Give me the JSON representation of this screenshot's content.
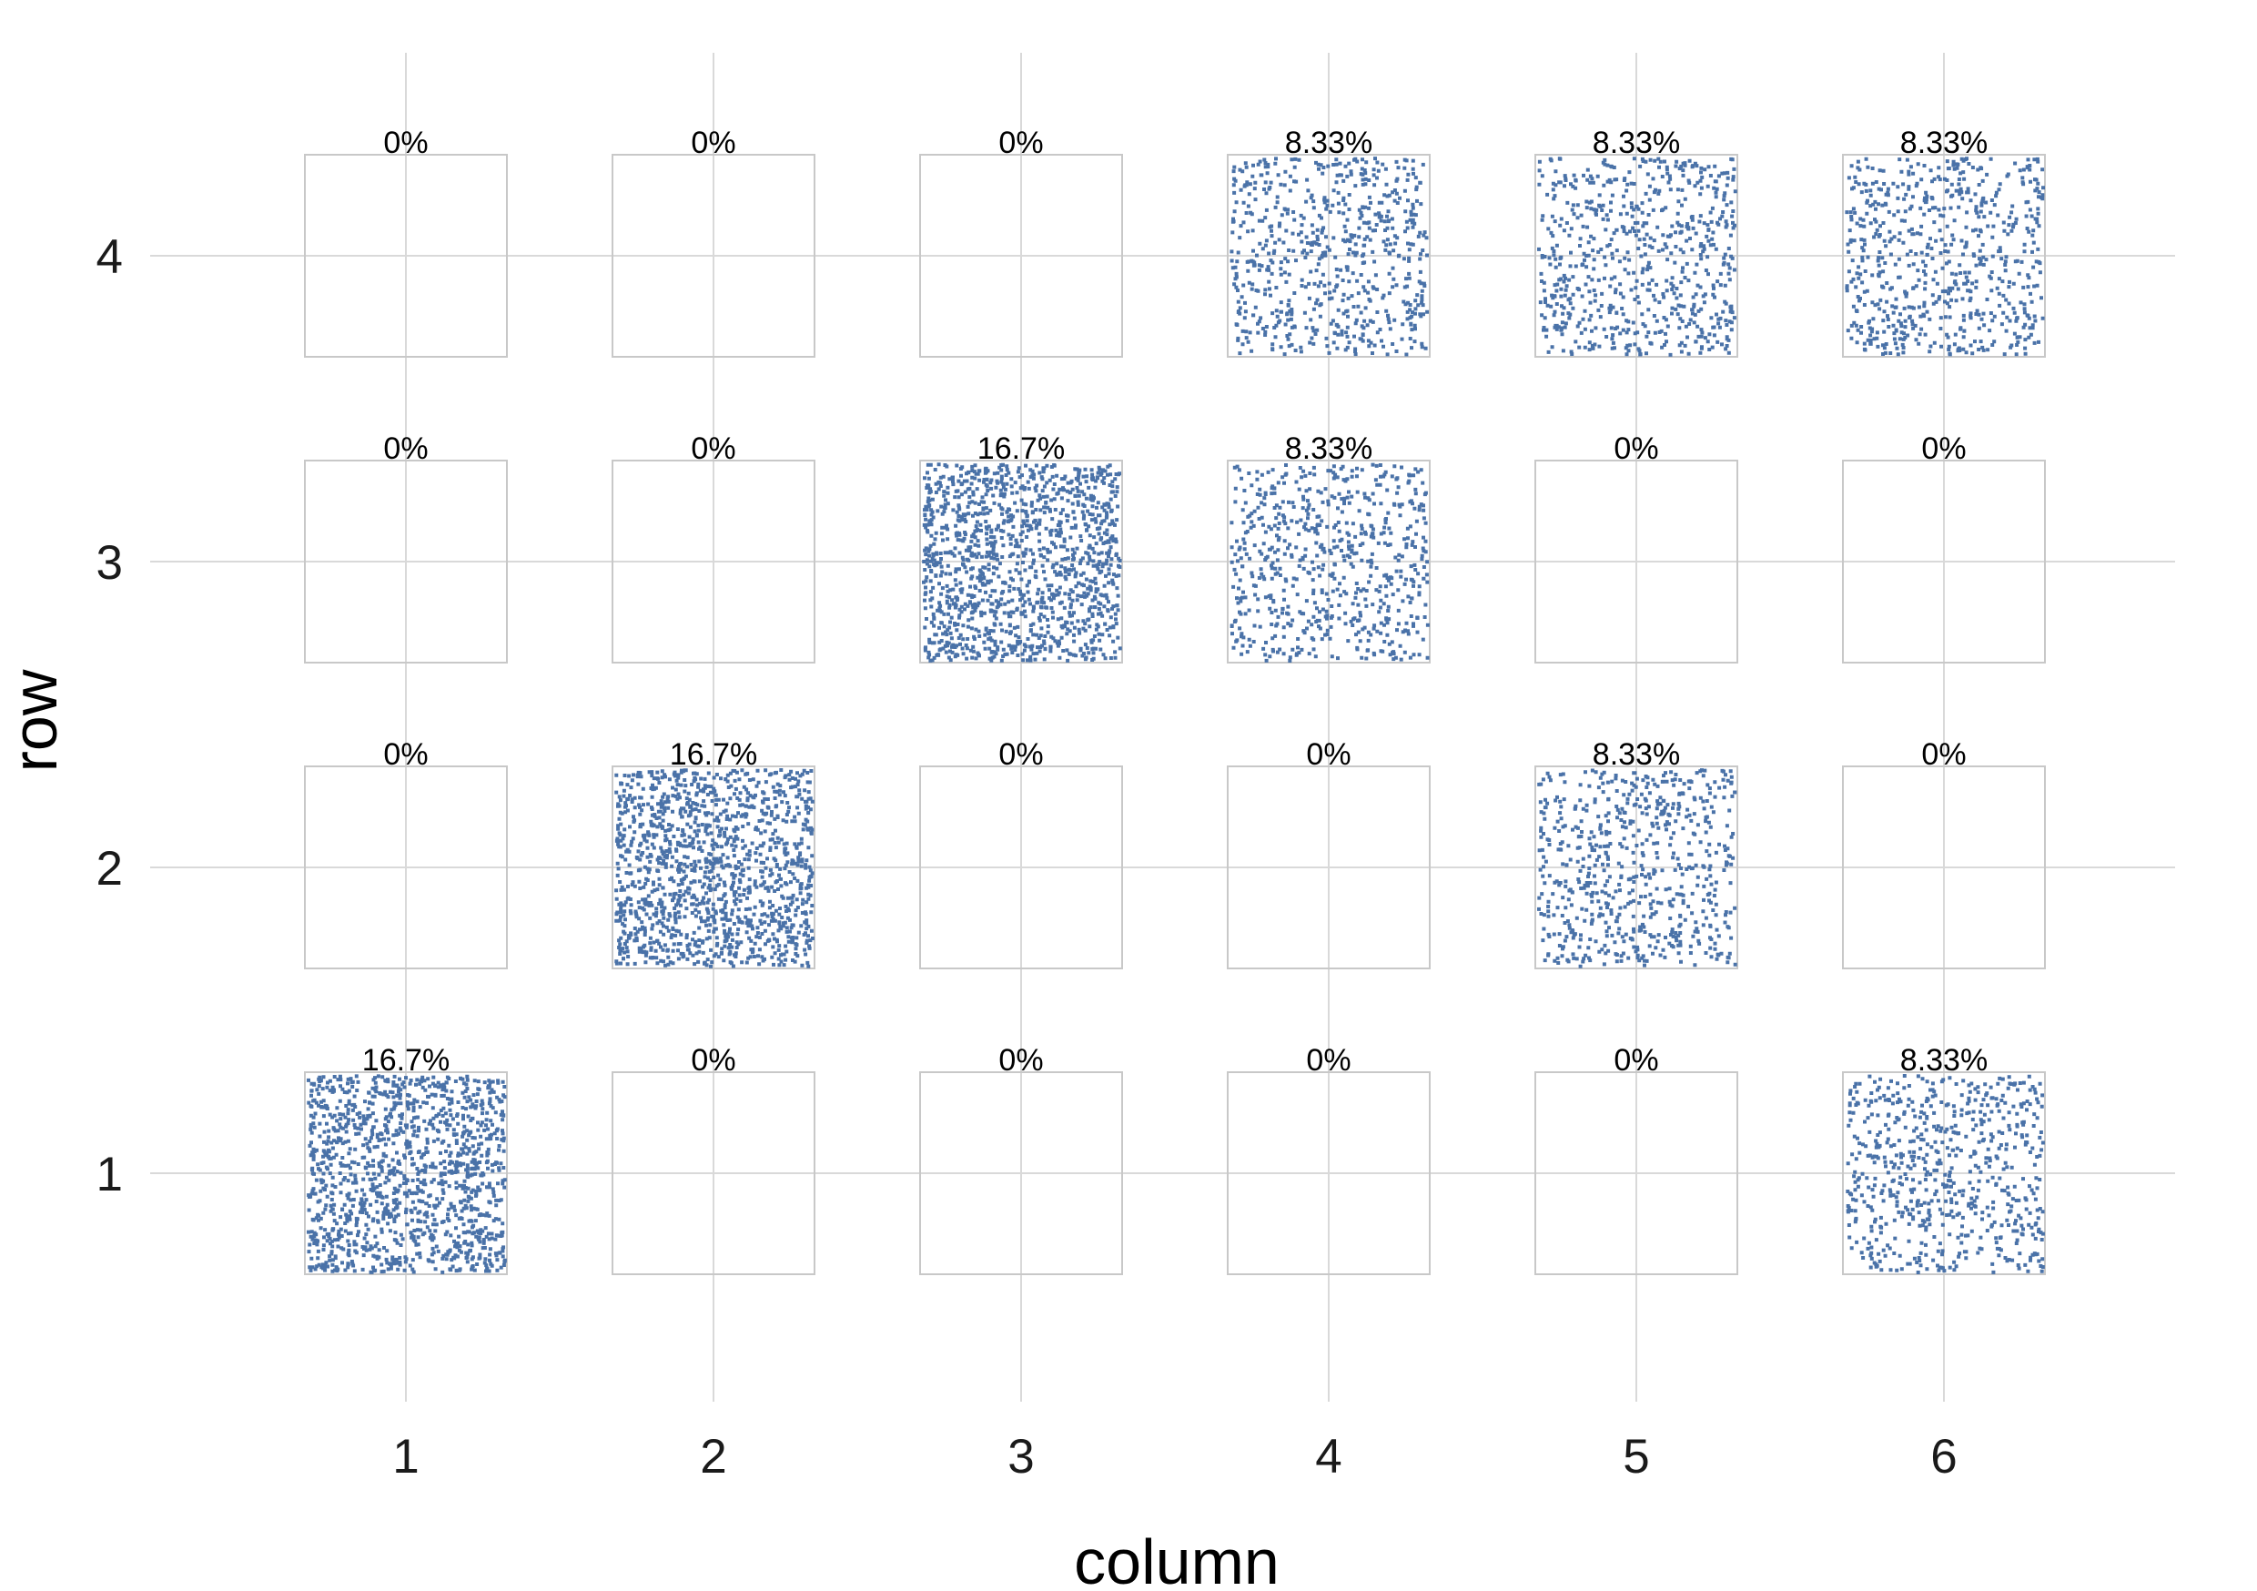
{
  "chart_data": {
    "type": "heatmap",
    "title": "",
    "xlabel": "column",
    "ylabel": "row",
    "x_ticks": [
      "1",
      "2",
      "3",
      "4",
      "5",
      "6"
    ],
    "y_ticks": [
      "1",
      "2",
      "3",
      "4"
    ],
    "xlim": [
      0.5,
      6.5
    ],
    "ylim": [
      0.5,
      4.5
    ],
    "grid": true,
    "dot_color": "#4a72a8",
    "cells": [
      {
        "row": 4,
        "column": 1,
        "value": 0,
        "label": "0%"
      },
      {
        "row": 4,
        "column": 2,
        "value": 0,
        "label": "0%"
      },
      {
        "row": 4,
        "column": 3,
        "value": 0,
        "label": "0%"
      },
      {
        "row": 4,
        "column": 4,
        "value": 8.33,
        "label": "8.33%"
      },
      {
        "row": 4,
        "column": 5,
        "value": 8.33,
        "label": "8.33%"
      },
      {
        "row": 4,
        "column": 6,
        "value": 8.33,
        "label": "8.33%"
      },
      {
        "row": 3,
        "column": 1,
        "value": 0,
        "label": "0%"
      },
      {
        "row": 3,
        "column": 2,
        "value": 0,
        "label": "0%"
      },
      {
        "row": 3,
        "column": 3,
        "value": 16.7,
        "label": "16.7%"
      },
      {
        "row": 3,
        "column": 4,
        "value": 8.33,
        "label": "8.33%"
      },
      {
        "row": 3,
        "column": 5,
        "value": 0,
        "label": "0%"
      },
      {
        "row": 3,
        "column": 6,
        "value": 0,
        "label": "0%"
      },
      {
        "row": 2,
        "column": 1,
        "value": 0,
        "label": "0%"
      },
      {
        "row": 2,
        "column": 2,
        "value": 16.7,
        "label": "16.7%"
      },
      {
        "row": 2,
        "column": 3,
        "value": 0,
        "label": "0%"
      },
      {
        "row": 2,
        "column": 4,
        "value": 0,
        "label": "0%"
      },
      {
        "row": 2,
        "column": 5,
        "value": 8.33,
        "label": "8.33%"
      },
      {
        "row": 2,
        "column": 6,
        "value": 0,
        "label": "0%"
      },
      {
        "row": 1,
        "column": 1,
        "value": 16.7,
        "label": "16.7%"
      },
      {
        "row": 1,
        "column": 2,
        "value": 0,
        "label": "0%"
      },
      {
        "row": 1,
        "column": 3,
        "value": 0,
        "label": "0%"
      },
      {
        "row": 1,
        "column": 4,
        "value": 0,
        "label": "0%"
      },
      {
        "row": 1,
        "column": 5,
        "value": 0,
        "label": "0%"
      },
      {
        "row": 1,
        "column": 6,
        "value": 8.33,
        "label": "8.33%"
      }
    ]
  }
}
